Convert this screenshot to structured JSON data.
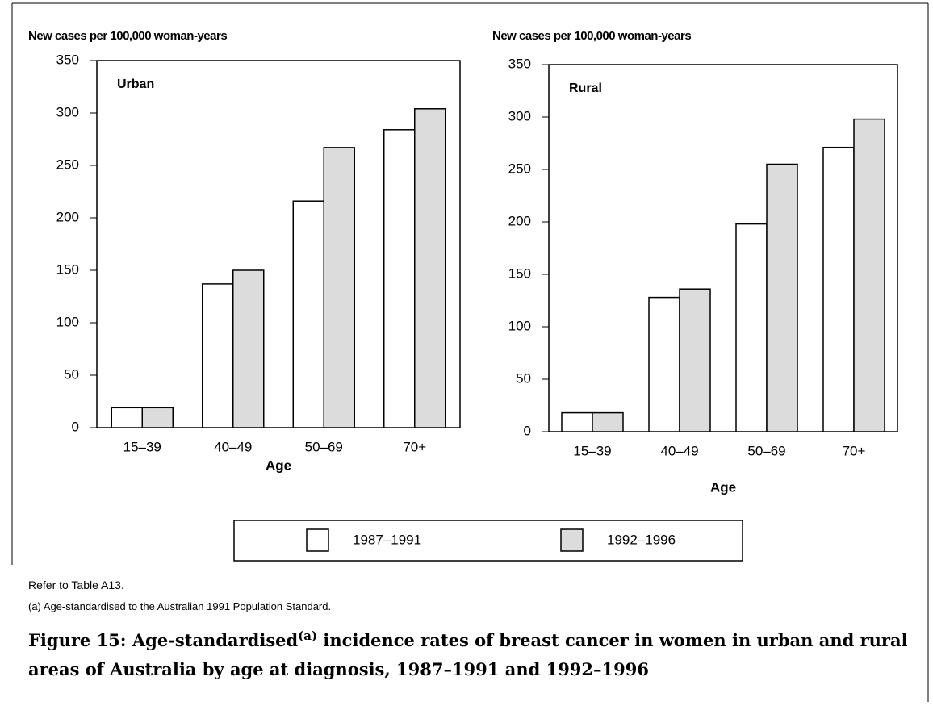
{
  "chart_data": [
    {
      "type": "bar",
      "y_label": "New cases per 100,000 woman-years",
      "panel_label": "Urban",
      "x_label": "Age",
      "categories": [
        "15–39",
        "40–49",
        "50–69",
        "70+"
      ],
      "series": [
        {
          "name": "1987–1991",
          "color": "#ffffff",
          "values": [
            19,
            137,
            216,
            284
          ]
        },
        {
          "name": "1992–1996",
          "color": "#dcdcdc",
          "values": [
            19,
            150,
            267,
            304
          ]
        }
      ],
      "ylim": [
        0,
        350
      ],
      "yticks": [
        0,
        50,
        100,
        150,
        200,
        250,
        300,
        350
      ]
    },
    {
      "type": "bar",
      "y_label": "New cases per 100,000 woman-years",
      "panel_label": "Rural",
      "x_label": "Age",
      "categories": [
        "15–39",
        "40–49",
        "50–69",
        "70+"
      ],
      "series": [
        {
          "color": "#ffffff",
          "values": [
            18,
            128,
            198,
            271
          ]
        },
        {
          "color": "#dcdcdc",
          "values": [
            18,
            136,
            255,
            298
          ]
        }
      ],
      "ylim": [
        0,
        350
      ],
      "yticks": [
        0,
        50,
        100,
        150,
        200,
        250,
        300,
        350
      ]
    }
  ],
  "notes": [
    "Refer  to Table A13.",
    "(a) Age-standardised to the Australian 1991 Population Standard."
  ],
  "caption": {
    "before": "Figure 15: Age-standardised",
    "superscript": "(a)",
    "after": " incidence rates of breast cancer in women in urban and rural areas of Australia by age at diagnosis, 1987–1991 and 1992–1996"
  }
}
